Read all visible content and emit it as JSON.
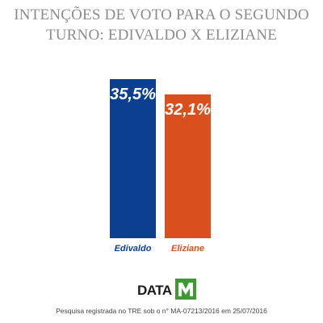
{
  "title_line1": "INTENÇÕES DE VOTO PARA O SEGUNDO",
  "title_line2": "TURNO: EDIVALDO X ELIZIANE",
  "logo_text": "DATA",
  "logo_letter": "M",
  "footer": "Pesquisa registrada no TRE sob o n° MA-07213/2016 em 25/07/2016",
  "colors": {
    "edivaldo": "#0d3f91",
    "eliziane": "#d9501e",
    "title": "#8c8c8c",
    "logo_green": "#3c9a2e"
  },
  "chart_data": {
    "type": "bar",
    "title": "INTENÇÕES DE VOTO PARA O SEGUNDO TURNO: EDIVALDO X ELIZIANE",
    "categories": [
      "Edivaldo",
      "Eliziane"
    ],
    "values": [
      35.5,
      32.1
    ],
    "value_labels": [
      "35,5%",
      "32,1%"
    ],
    "colors": [
      "#0d3f91",
      "#d9501e"
    ],
    "ylim": [
      0,
      35.5
    ],
    "grid": false,
    "legend": "none"
  }
}
